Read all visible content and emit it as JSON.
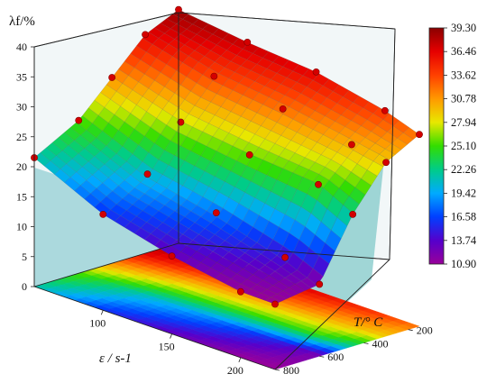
{
  "chart_data": {
    "type": "surface3d",
    "z_axis": {
      "label": "λf/%",
      "range": [
        0,
        40
      ],
      "ticks": [
        0,
        5,
        10,
        15,
        20,
        25,
        30,
        35,
        40
      ]
    },
    "x_axis": {
      "label": "ε / s-1",
      "range": [
        50,
        225
      ],
      "ticks": [
        100,
        150,
        200
      ]
    },
    "y_axis": {
      "label": "T/° C",
      "range": [
        150,
        800
      ],
      "ticks": [
        200,
        400,
        600,
        800
      ]
    },
    "colorbar": {
      "min": 10.9,
      "max": 39.3,
      "ticks": [
        "39.30",
        "36.46",
        "33.62",
        "30.78",
        "27.94",
        "25.10",
        "22.26",
        "19.42",
        "16.58",
        "13.74",
        "10.90"
      ],
      "colors": [
        "#8b0000",
        "#e60000",
        "#ff4000",
        "#ff9900",
        "#e8e800",
        "#33dd00",
        "#00cc88",
        "#00aaff",
        "#0040ff",
        "#5500cc",
        "#990099"
      ]
    },
    "strain_rate_grid": [
      50,
      100,
      150,
      200,
      225
    ],
    "temperature_grid": [
      150,
      300,
      450,
      600,
      800
    ],
    "values": [
      [
        39.0,
        36.5,
        31.0,
        25.5,
        21.5
      ],
      [
        37.5,
        33.5,
        27.5,
        20.5,
        16.0
      ],
      [
        36.5,
        32.0,
        26.0,
        18.0,
        13.0
      ],
      [
        34.0,
        30.0,
        25.0,
        14.5,
        11.0
      ],
      [
        32.0,
        29.0,
        22.0,
        12.0,
        10.9
      ]
    ]
  }
}
